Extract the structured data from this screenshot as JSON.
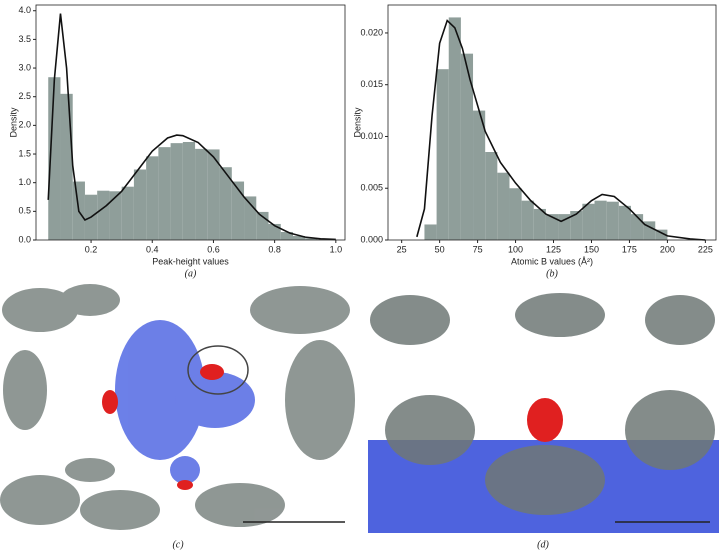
{
  "chart_data": [
    {
      "type": "histogram",
      "caption": "(a)",
      "xlabel": "Peak-height values",
      "ylabel": "Density",
      "color": "#8f9e9a",
      "line_color": "#111111",
      "bins": [
        0.06,
        0.1,
        0.14,
        0.18,
        0.22,
        0.26,
        0.3,
        0.34,
        0.38,
        0.42,
        0.46,
        0.5,
        0.54,
        0.58,
        0.62,
        0.66,
        0.7,
        0.74,
        0.78,
        0.82,
        0.86,
        0.9,
        0.94
      ],
      "values": [
        2.84,
        2.55,
        1.02,
        0.79,
        0.86,
        0.85,
        0.93,
        1.23,
        1.46,
        1.62,
        1.69,
        1.71,
        1.59,
        1.58,
        1.27,
        1.02,
        0.76,
        0.49,
        0.28,
        0.14,
        0.07,
        0.03
      ],
      "curve": {
        "x": [
          0.06,
          0.08,
          0.1,
          0.12,
          0.14,
          0.16,
          0.18,
          0.2,
          0.25,
          0.3,
          0.35,
          0.4,
          0.45,
          0.48,
          0.5,
          0.55,
          0.6,
          0.65,
          0.7,
          0.75,
          0.8,
          0.85,
          0.9,
          0.95,
          1.0
        ],
        "y": [
          0.7,
          2.8,
          3.95,
          3.0,
          1.3,
          0.5,
          0.35,
          0.4,
          0.6,
          0.85,
          1.2,
          1.55,
          1.78,
          1.83,
          1.82,
          1.7,
          1.45,
          1.1,
          0.75,
          0.45,
          0.25,
          0.12,
          0.05,
          0.02,
          0.01
        ]
      },
      "xlim": [
        0.02,
        1.03
      ],
      "ylim": [
        0,
        4.1
      ],
      "xticks": [
        0.2,
        0.4,
        0.6,
        0.8,
        {
          "value": 1.0,
          "label": "1.0"
        }
      ],
      "yticks": [
        {
          "value": 0,
          "label": "0.0"
        },
        0.5,
        {
          "value": 1,
          "label": "1.0"
        },
        1.5,
        {
          "value": 2,
          "label": "2.0"
        },
        2.5,
        {
          "value": 3,
          "label": "3.0"
        },
        3.5,
        {
          "value": 4,
          "label": "4.0"
        }
      ]
    },
    {
      "type": "histogram",
      "caption": "(b)",
      "xlabel": "Atomic B values (Å²)",
      "ylabel": "Density",
      "color": "#8f9e9a",
      "line_color": "#111111",
      "bins": [
        40,
        48,
        56,
        64,
        72,
        80,
        88,
        96,
        104,
        112,
        120,
        128,
        136,
        144,
        152,
        160,
        168,
        176,
        184,
        192,
        200
      ],
      "values": [
        0.0015,
        0.0165,
        0.0215,
        0.018,
        0.0125,
        0.0085,
        0.0065,
        0.005,
        0.0038,
        0.003,
        0.0025,
        0.0025,
        0.0028,
        0.0035,
        0.0038,
        0.0037,
        0.0033,
        0.0025,
        0.0018,
        0.001
      ],
      "curve": {
        "x": [
          35,
          40,
          45,
          50,
          55,
          60,
          65,
          70,
          80,
          90,
          100,
          110,
          120,
          130,
          140,
          150,
          157,
          165,
          175,
          185,
          200,
          215,
          225
        ],
        "y": [
          0.0003,
          0.003,
          0.012,
          0.019,
          0.0212,
          0.0205,
          0.0185,
          0.0155,
          0.0105,
          0.0075,
          0.0055,
          0.0038,
          0.0025,
          0.0018,
          0.0025,
          0.0038,
          0.0044,
          0.0042,
          0.003,
          0.0015,
          0.0004,
          0.0001,
          0
        ]
      },
      "xlim": [
        16,
        232
      ],
      "ylim": [
        0,
        0.0227
      ],
      "xticks": [
        25,
        50,
        75,
        100,
        125,
        150,
        175,
        200,
        225
      ],
      "yticks": [
        {
          "value": 0,
          "label": "0.000"
        },
        {
          "value": 0.005,
          "label": "0.005"
        },
        {
          "value": 0.01,
          "label": "0.010"
        },
        {
          "value": 0.015,
          "label": "0.015"
        },
        {
          "value": 0.02,
          "label": "0.020"
        }
      ]
    }
  ],
  "panels": {
    "c": {
      "label": "(c)"
    },
    "d": {
      "label": "(d)"
    }
  }
}
